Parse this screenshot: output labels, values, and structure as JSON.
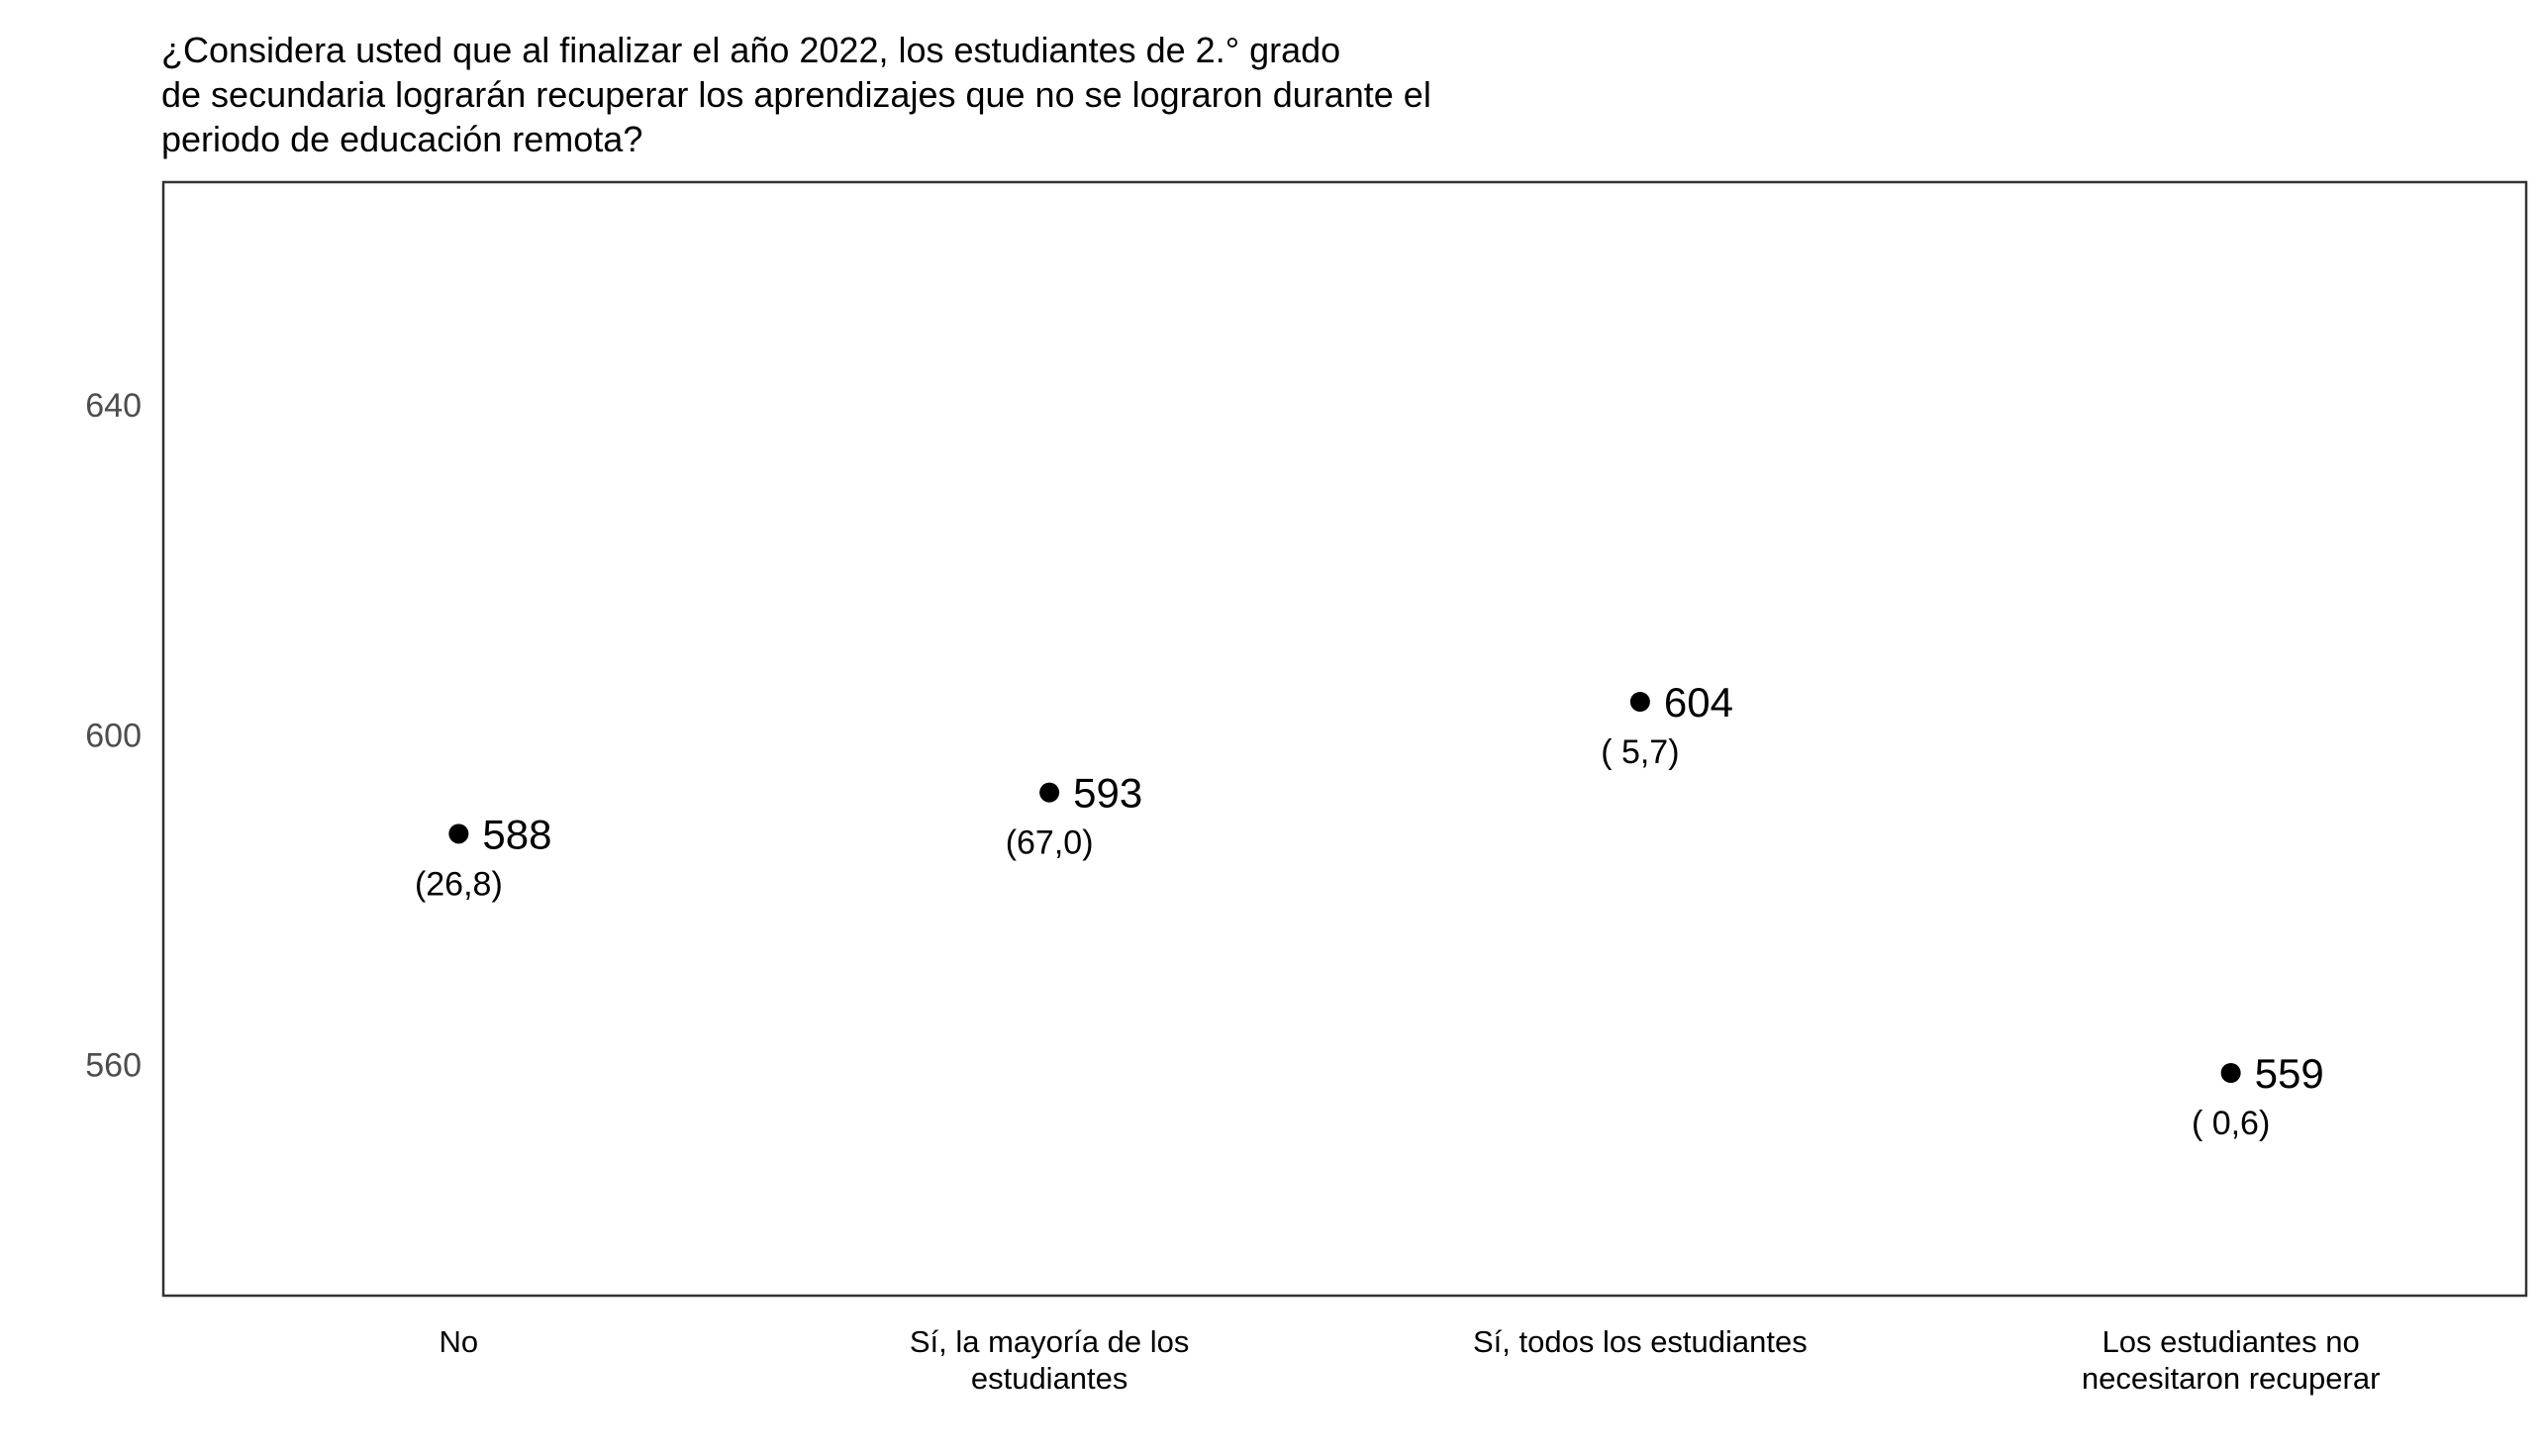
{
  "chart_data": {
    "type": "scatter",
    "title": "¿Considera usted que al finalizar el año 2022, los estudiantes de 2.° grado\nde secundaria lograrán recuperar los aprendizajes que no se lograron durante el\nperiodo de educación remota?",
    "xlabel": "",
    "ylabel": "",
    "ylim": [
      532,
      667
    ],
    "yticks": [
      "560",
      "600",
      "640"
    ],
    "grid": false,
    "legend": "none",
    "categories": [
      "No",
      "Sí, la mayoría de los\nestudiantes",
      "Sí, todos los estudiantes",
      "Los estudiantes no\nnecesitaron recuperar"
    ],
    "series": [
      {
        "values": [
          588,
          593,
          604,
          559
        ],
        "value_labels": [
          "588",
          "593",
          "604",
          "559"
        ],
        "percent_labels": [
          "(26,8)",
          "(67,0)",
          "( 5,7)",
          "( 0,6)"
        ]
      }
    ],
    "marker_color": "#000000"
  }
}
